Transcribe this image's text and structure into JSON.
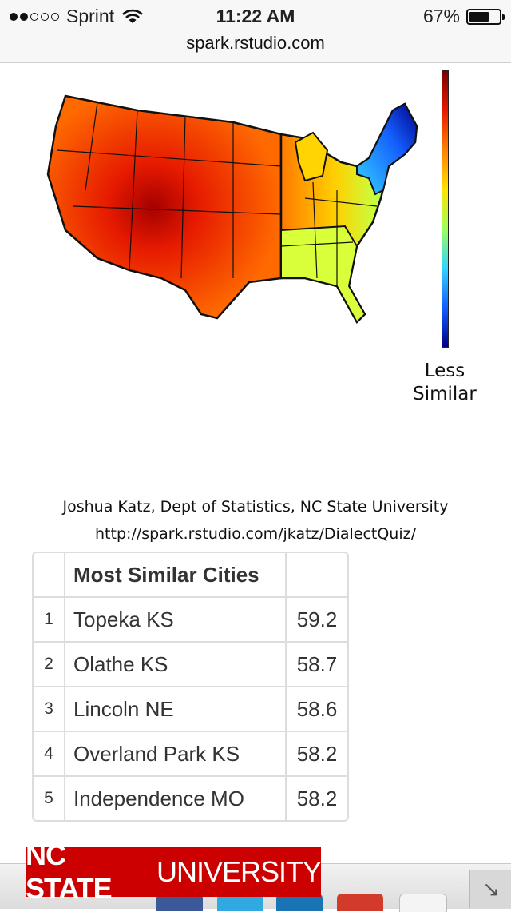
{
  "status_bar": {
    "carrier": "Sprint",
    "time": "11:22 AM",
    "battery_percent": "67%",
    "battery_level": 0.67,
    "signal_bars": 2,
    "signal_total": 5
  },
  "browser": {
    "url": "spark.rstudio.com"
  },
  "map": {
    "legend_label_line1": "Less",
    "legend_label_line2": "Similar",
    "colors": {
      "high": "#7a0000",
      "mid": "#ffe400",
      "low": "#00008a"
    }
  },
  "credits": {
    "author": "Joshua Katz, Dept of Statistics, NC State University",
    "link": "http://spark.rstudio.com/jkatz/DialectQuiz/"
  },
  "table": {
    "header": "Most Similar Cities",
    "rows": [
      {
        "rank": "1",
        "city": "Topeka KS",
        "score": "59.2"
      },
      {
        "rank": "2",
        "city": "Olathe KS",
        "score": "58.7"
      },
      {
        "rank": "3",
        "city": "Lincoln NE",
        "score": "58.6"
      },
      {
        "rank": "4",
        "city": "Overland Park KS",
        "score": "58.2"
      },
      {
        "rank": "5",
        "city": "Independence MO",
        "score": "58.2"
      }
    ]
  },
  "banner": {
    "bold": "NC STATE",
    "light": "UNIVERSITY",
    "color": "#cc0000"
  },
  "share_icons": [
    "facebook-icon",
    "twitter-icon",
    "linkedin-icon",
    "google-plus-icon",
    "email-icon"
  ]
}
